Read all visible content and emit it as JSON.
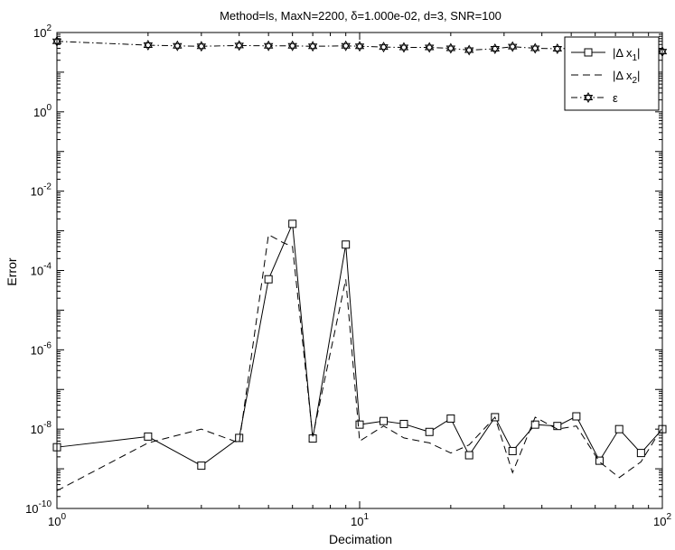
{
  "chart_data": {
    "type": "line",
    "title": "Method=ls, MaxN=2200, δ=1.000e-02, d=3, SNR=100",
    "xlabel": "Decimation",
    "ylabel": "Error",
    "xscale": "log",
    "yscale": "log",
    "xlim": [
      1,
      100
    ],
    "ylim": [
      1e-10,
      100
    ],
    "grid": false,
    "legend_position": "top-right",
    "x_tick_labels": [
      {
        "base": "10",
        "exp": "0",
        "value": 1
      },
      {
        "base": "10",
        "exp": "1",
        "value": 10
      },
      {
        "base": "10",
        "exp": "2",
        "value": 100
      }
    ],
    "y_tick_labels": [
      {
        "base": "10",
        "exp": "2",
        "value": 100
      },
      {
        "base": "10",
        "exp": "0",
        "value": 1
      },
      {
        "base": "10",
        "exp": "-2",
        "value": 0.01
      },
      {
        "base": "10",
        "exp": "-4",
        "value": 0.0001
      },
      {
        "base": "10",
        "exp": "-6",
        "value": 1e-06
      },
      {
        "base": "10",
        "exp": "-8",
        "value": 1e-08
      },
      {
        "base": "10",
        "exp": "-10",
        "value": 1e-10
      }
    ],
    "series": [
      {
        "name": "|Δ x1|",
        "legend_main": "|Δ x",
        "legend_sub": "1",
        "legend_tail": "|",
        "style": "solid",
        "marker": "square",
        "points": [
          [
            1,
            3.5e-09
          ],
          [
            2,
            6.5e-09
          ],
          [
            3,
            1.2e-09
          ],
          [
            4,
            6e-09
          ],
          [
            5,
            6e-05
          ],
          [
            6,
            0.0015
          ],
          [
            7,
            5.8e-09
          ],
          [
            9,
            0.00045
          ],
          [
            10,
            1.3e-08
          ],
          [
            12,
            1.6e-08
          ],
          [
            14,
            1.35e-08
          ],
          [
            17,
            8.5e-09
          ],
          [
            20,
            1.85e-08
          ],
          [
            23,
            2.2e-09
          ],
          [
            28,
            2e-08
          ],
          [
            32,
            2.8e-09
          ],
          [
            38,
            1.3e-08
          ],
          [
            45,
            1.2e-08
          ],
          [
            52,
            2.1e-08
          ],
          [
            62,
            1.6e-09
          ],
          [
            72,
            1e-08
          ],
          [
            85,
            2.5e-09
          ],
          [
            100,
            1e-08
          ]
        ]
      },
      {
        "name": "|Δ x2|",
        "legend_main": "|Δ x",
        "legend_sub": "2",
        "legend_tail": "|",
        "style": "dashed",
        "marker": "none",
        "points": [
          [
            1,
            2.8e-10
          ],
          [
            2,
            4.5e-09
          ],
          [
            3,
            1e-08
          ],
          [
            4,
            4.5e-09
          ],
          [
            5,
            0.0008
          ],
          [
            5.6,
            0.0005
          ],
          [
            6,
            0.0004
          ],
          [
            7,
            6.5e-09
          ],
          [
            9,
            6e-05
          ],
          [
            10,
            5e-09
          ],
          [
            12,
            1.2e-08
          ],
          [
            14,
            6e-09
          ],
          [
            17,
            4.5e-09
          ],
          [
            20,
            2.5e-09
          ],
          [
            23,
            4e-09
          ],
          [
            28,
            2e-08
          ],
          [
            32,
            8e-10
          ],
          [
            38,
            2e-08
          ],
          [
            45,
            1e-08
          ],
          [
            52,
            1.2e-08
          ],
          [
            62,
            1.5e-09
          ],
          [
            72,
            6e-10
          ],
          [
            85,
            1.5e-09
          ],
          [
            100,
            1.1e-08
          ]
        ]
      },
      {
        "name": "ε",
        "legend_main": "ε",
        "legend_sub": "",
        "legend_tail": "",
        "style": "dashdot",
        "marker": "hexagram",
        "points": [
          [
            1,
            60
          ],
          [
            2,
            48
          ],
          [
            2.5,
            46
          ],
          [
            3,
            45
          ],
          [
            4,
            47
          ],
          [
            5,
            46
          ],
          [
            6,
            46
          ],
          [
            7,
            45
          ],
          [
            9,
            46
          ],
          [
            10,
            45
          ],
          [
            12,
            43
          ],
          [
            14,
            42
          ],
          [
            17,
            42
          ],
          [
            20,
            40
          ],
          [
            23,
            36
          ],
          [
            28,
            39
          ],
          [
            32,
            44
          ],
          [
            38,
            40
          ],
          [
            45,
            39
          ],
          [
            52,
            40
          ],
          [
            62,
            37
          ],
          [
            72,
            36
          ],
          [
            85,
            35
          ],
          [
            100,
            33
          ]
        ]
      }
    ]
  }
}
